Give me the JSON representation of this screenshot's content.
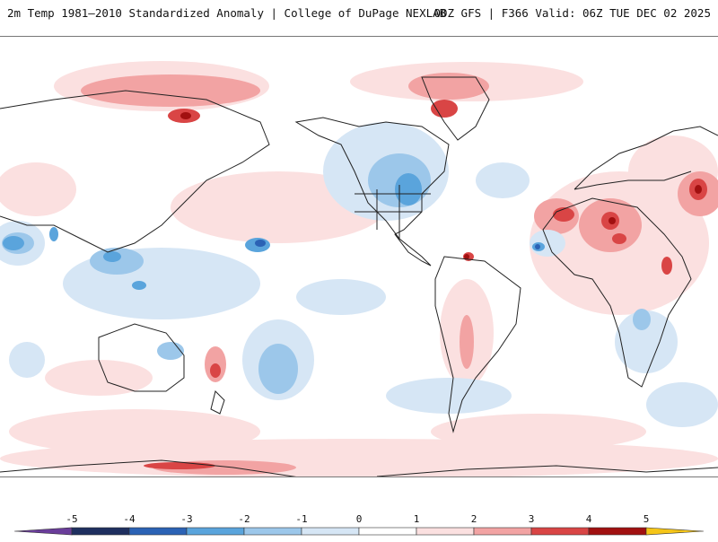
{
  "header": {
    "title": "2m Temp 1981–2010 Standardized Anomaly | College of DuPage NEXLAB",
    "run_info": "00Z GFS | F366 Valid: 06Z TUE DEC 02 2025"
  },
  "legend": {
    "tick_labels": [
      "-5",
      "-4",
      "-3",
      "-2",
      "-1",
      "0",
      "1",
      "2",
      "3",
      "4",
      "5"
    ],
    "colors": {
      "min_arrow": "#6a3d9a",
      "bin_-5": "#1e2f5f",
      "bin_-4": "#2b62b5",
      "bin_-3": "#5aa4dc",
      "bin_-2": "#9cc7ea",
      "bin_-1": "#d6e6f5",
      "bin_0": "#ffffff",
      "bin_1": "#fbe0e0",
      "bin_2": "#f2a3a3",
      "bin_3": "#d94545",
      "bin_4": "#a11010",
      "bin_5": "#6d0008",
      "max_arrow": "#f5c518"
    }
  },
  "map": {
    "colors": {
      "warm_light": "#fbe0e0",
      "warm_medium": "#f2a3a3",
      "warm_strong": "#d94545",
      "warm_extreme": "#a11010",
      "cool_light": "#d6e6f5",
      "cool_medium": "#9cc7ea",
      "cool_strong": "#5aa4dc",
      "cool_extreme": "#2b62b5",
      "coast": "#222222"
    }
  }
}
